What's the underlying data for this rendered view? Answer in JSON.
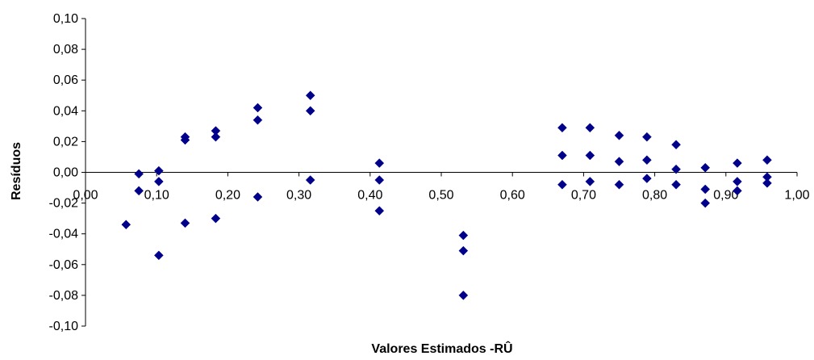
{
  "chart_data": {
    "type": "scatter",
    "title": "",
    "xlabel": "Valores Estimados -RÛ",
    "ylabel": "Resíduos",
    "xlim": [
      0.0,
      1.0
    ],
    "ylim": [
      -0.1,
      0.1
    ],
    "x_ticks": [
      "0,00",
      "0,10",
      "0,20",
      "0,30",
      "0,40",
      "0,50",
      "0,60",
      "0,70",
      "0,80",
      "0,90",
      "1,00"
    ],
    "y_ticks": [
      "0,10",
      "0,08",
      "0,06",
      "0,04",
      "0,02",
      "0,00",
      "-0,02",
      "-0,04",
      "-0,06",
      "-0,08",
      "-0,10"
    ],
    "grid": false,
    "legend": "none",
    "marker_color": "#00008B",
    "marker_shape": "diamond",
    "x": [
      0.057,
      0.075,
      0.075,
      0.103,
      0.103,
      0.103,
      0.14,
      0.14,
      0.14,
      0.183,
      0.183,
      0.183,
      0.242,
      0.242,
      0.242,
      0.316,
      0.316,
      0.316,
      0.413,
      0.413,
      0.413,
      0.531,
      0.531,
      0.531,
      0.67,
      0.67,
      0.67,
      0.709,
      0.709,
      0.709,
      0.75,
      0.75,
      0.75,
      0.789,
      0.789,
      0.789,
      0.83,
      0.83,
      0.83,
      0.871,
      0.871,
      0.871,
      0.916,
      0.916,
      0.916,
      0.958,
      0.958,
      0.958
    ],
    "y": [
      -0.034,
      -0.001,
      -0.012,
      0.001,
      -0.006,
      -0.054,
      0.023,
      0.021,
      -0.033,
      0.027,
      0.023,
      -0.03,
      0.042,
      0.034,
      -0.016,
      0.05,
      0.04,
      -0.005,
      0.006,
      -0.005,
      -0.025,
      -0.041,
      -0.051,
      -0.08,
      0.029,
      0.011,
      -0.008,
      0.029,
      0.011,
      -0.006,
      0.024,
      0.007,
      -0.008,
      0.023,
      0.008,
      -0.004,
      0.018,
      0.002,
      -0.008,
      0.003,
      -0.011,
      -0.02,
      0.006,
      -0.006,
      -0.012,
      0.008,
      -0.003,
      -0.007
    ]
  }
}
